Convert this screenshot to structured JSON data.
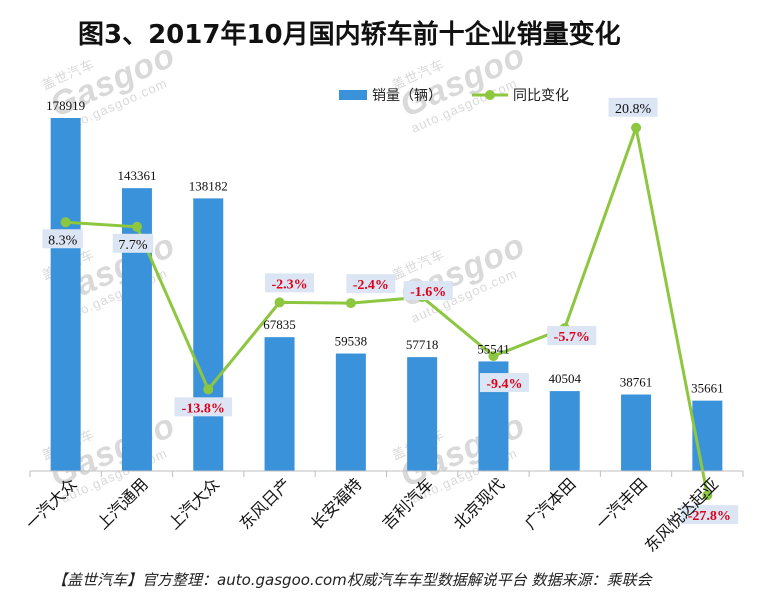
{
  "title": "图3、2017年10月国内轿车前十企业销量变化",
  "footer": "【盖世汽车】官方整理：auto.gasgoo.com权威汽车车型数据解说平台 数据来源：乘联会",
  "watermark": {
    "brand": "Gasgoo",
    "cn": "盖世汽车",
    "url": "auto.gasgoo.com"
  },
  "colors": {
    "bar": "#3a92da",
    "line": "#8dc63f",
    "negative_label": "#e0001b",
    "label_box": "#dbe5f3"
  },
  "chart_data": {
    "type": "bar+line",
    "categories": [
      "一汽大众",
      "上汽通用",
      "上汽大众",
      "东风日产",
      "长安福特",
      "吉利汽车",
      "北京现代",
      "广汽本田",
      "一汽丰田",
      "东风悦达起亚"
    ],
    "series": [
      {
        "name": "销量（辆）",
        "type": "bar",
        "values": [
          178919,
          143361,
          138182,
          67835,
          59538,
          57718,
          55541,
          40504,
          38761,
          35661
        ],
        "labels": [
          "178919",
          "143361",
          "138182",
          "67835",
          "59538",
          "57718",
          "55541",
          "40504",
          "38761",
          "35661"
        ]
      },
      {
        "name": "同比变化",
        "type": "line",
        "values": [
          8.3,
          7.7,
          -13.8,
          -2.3,
          -2.4,
          -1.6,
          -9.4,
          -5.7,
          20.8,
          -27.8
        ],
        "labels": [
          "8.3%",
          "7.7%",
          "-13.8%",
          "-2.3%",
          "-2.4%",
          "-1.6%",
          "-9.4%",
          "-5.7%",
          "20.8%",
          "-27.8%"
        ]
      }
    ],
    "grid": false,
    "legend_position": "top-right"
  }
}
